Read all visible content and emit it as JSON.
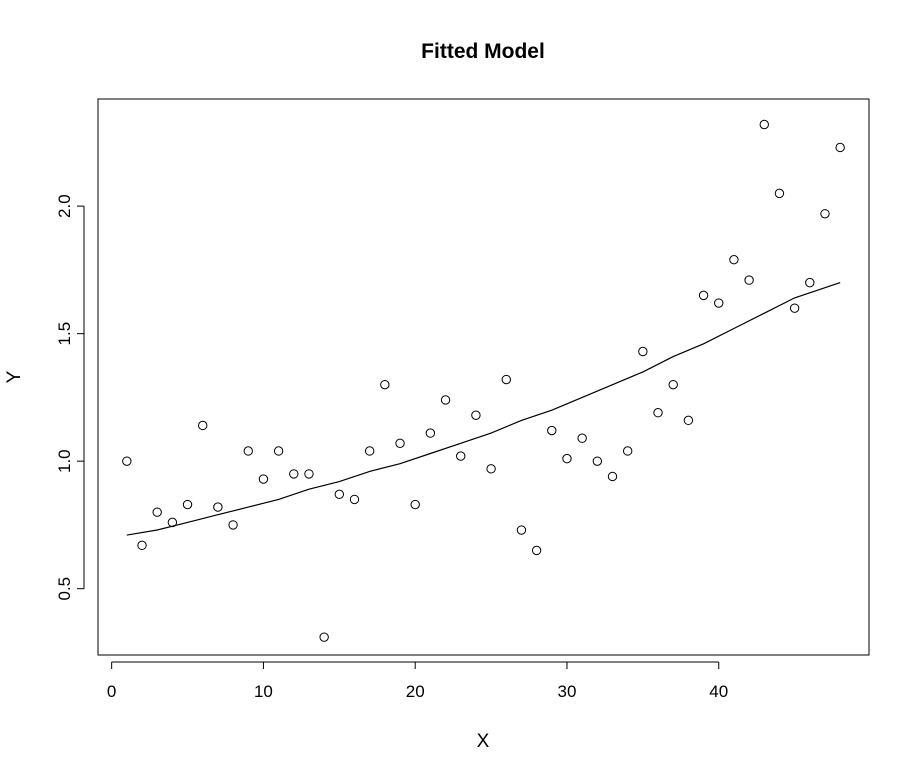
{
  "chart_data": {
    "type": "scatter",
    "title": "Fitted Model",
    "xlabel": "X",
    "ylabel": "Y",
    "xlim": [
      -0.9,
      49.9
    ],
    "ylim": [
      0.24,
      2.42
    ],
    "x_ticks": [
      0,
      10,
      20,
      30,
      40
    ],
    "y_ticks": [
      0.5,
      1.0,
      1.5,
      2.0
    ],
    "x_tick_labels": [
      "0",
      "10",
      "20",
      "30",
      "40"
    ],
    "y_tick_labels": [
      "0.5",
      "1.0",
      "1.5",
      "2.0"
    ],
    "grid": false,
    "points": {
      "x": [
        1,
        2,
        3,
        4,
        5,
        6,
        7,
        8,
        9,
        10,
        11,
        12,
        13,
        14,
        15,
        16,
        17,
        18,
        19,
        20,
        21,
        22,
        23,
        24,
        25,
        26,
        27,
        28,
        29,
        30,
        31,
        32,
        33,
        34,
        35,
        36,
        37,
        38,
        39,
        40,
        41,
        42,
        43,
        44,
        45,
        46,
        47,
        48
      ],
      "y": [
        1.0,
        0.67,
        0.8,
        0.76,
        0.83,
        1.14,
        0.82,
        0.75,
        1.04,
        0.93,
        1.04,
        0.95,
        0.95,
        0.31,
        0.87,
        0.85,
        1.04,
        1.3,
        1.07,
        0.83,
        1.11,
        1.24,
        1.02,
        1.18,
        0.97,
        1.32,
        0.73,
        0.65,
        1.12,
        1.01,
        1.09,
        1.0,
        0.94,
        1.04,
        1.43,
        1.19,
        1.3,
        1.16,
        1.65,
        1.62,
        1.79,
        1.71,
        2.32,
        2.05,
        1.6,
        1.7,
        1.97,
        2.23
      ]
    },
    "fit": {
      "x": [
        1,
        3,
        5,
        7,
        9,
        11,
        13,
        15,
        17,
        19,
        21,
        23,
        25,
        27,
        29,
        31,
        33,
        35,
        37,
        39,
        41,
        43,
        45,
        48
      ],
      "y": [
        0.71,
        0.73,
        0.76,
        0.79,
        0.82,
        0.85,
        0.89,
        0.92,
        0.96,
        0.99,
        1.03,
        1.07,
        1.11,
        1.16,
        1.2,
        1.25,
        1.3,
        1.35,
        1.41,
        1.46,
        1.52,
        1.58,
        1.64,
        1.7
      ]
    }
  }
}
